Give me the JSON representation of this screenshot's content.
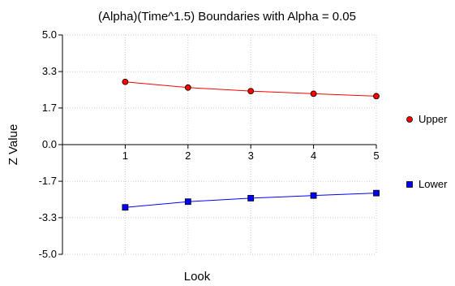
{
  "chart_data": {
    "type": "line",
    "title": "(Alpha)(Time^1.5) Boundaries with Alpha = 0.05",
    "xlabel": "Look",
    "ylabel": "Z Value",
    "x": [
      1,
      2,
      3,
      4,
      5
    ],
    "xlim": [
      0,
      5
    ],
    "ylim": [
      -5.0,
      5.0
    ],
    "x_ticks": [
      "1",
      "2",
      "3",
      "4",
      "5"
    ],
    "y_ticks": [
      "5.0",
      "3.3",
      "1.7",
      "0.0",
      "-1.7",
      "-3.3",
      "-5.0"
    ],
    "y_tick_values": [
      5.0,
      3.33,
      1.67,
      0.0,
      -1.67,
      -3.33,
      -5.0
    ],
    "grid": true,
    "legend_position": "right",
    "series": [
      {
        "name": "Upper",
        "values": [
          2.86,
          2.6,
          2.44,
          2.32,
          2.21
        ],
        "color": "#ff0000",
        "marker": "circle"
      },
      {
        "name": "Lower",
        "values": [
          -2.86,
          -2.6,
          -2.44,
          -2.32,
          -2.21
        ],
        "color": "#0000ff",
        "marker": "square"
      }
    ]
  }
}
